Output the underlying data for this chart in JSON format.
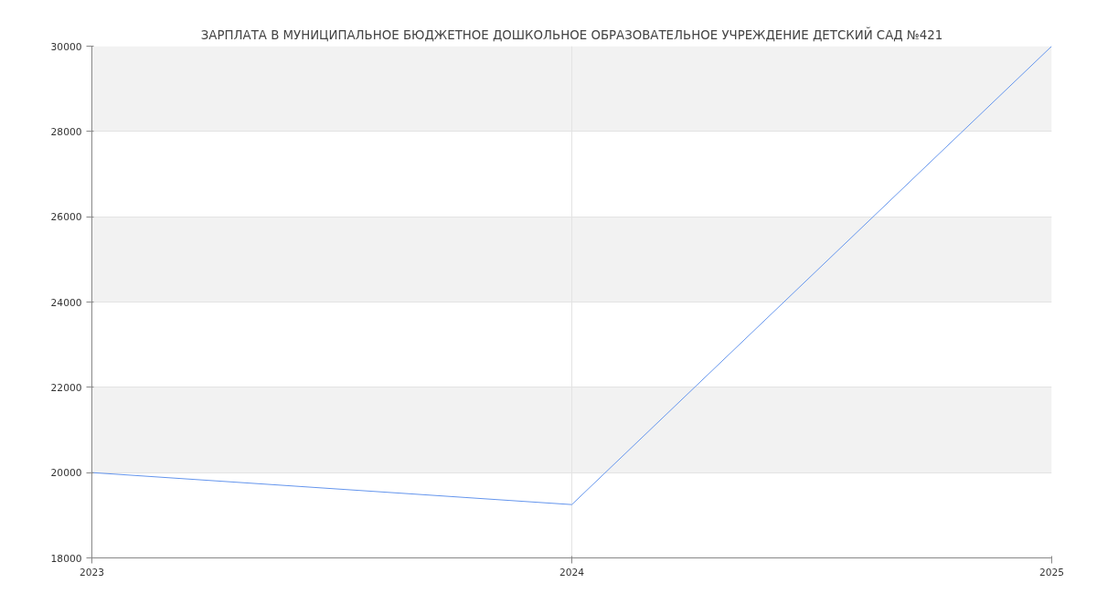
{
  "chart_data": {
    "type": "line",
    "title": "ЗАРПЛАТА В МУНИЦИПАЛЬНОЕ БЮДЖЕТНОЕ ДОШКОЛЬНОЕ ОБРАЗОВАТЕЛЬНОЕ УЧРЕЖДЕНИЕ ДЕТСКИЙ САД №421",
    "x": [
      2023,
      2024,
      2025
    ],
    "series": [
      {
        "color": "#6495ed",
        "values": [
          20000,
          19250,
          30000
        ]
      }
    ],
    "xlim": [
      2023,
      2025
    ],
    "xticks": [
      2023,
      2024,
      2025
    ],
    "ylim": [
      18000,
      30000
    ],
    "yticks": [
      18000,
      20000,
      22000,
      24000,
      26000,
      28000,
      30000
    ],
    "bands": [
      {
        "axis": "y",
        "from": 20000,
        "to": 22000,
        "color": "#f2f2f2"
      },
      {
        "axis": "y",
        "from": 24000,
        "to": 26000,
        "color": "#f2f2f2"
      },
      {
        "axis": "y",
        "from": 28000,
        "to": 30000,
        "color": "#f2f2f2"
      }
    ],
    "grid": true,
    "marker": "none",
    "line_style": "solid"
  }
}
